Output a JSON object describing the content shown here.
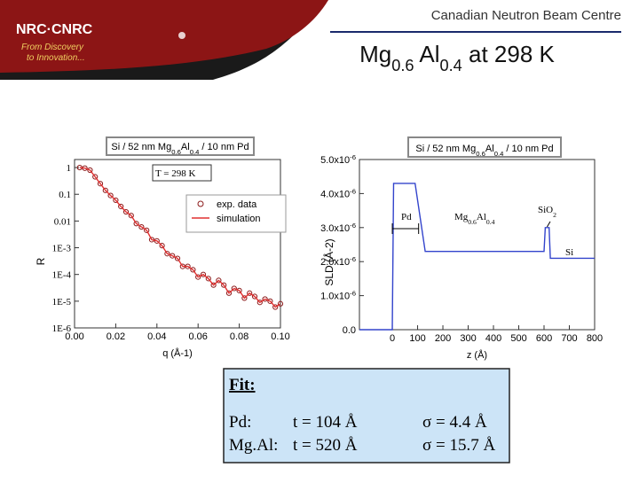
{
  "header": {
    "org": "Canadian Neutron Beam Centre",
    "logo": "NRC·CNRC",
    "tagline": [
      "From Discovery",
      "to Innovation..."
    ]
  },
  "title": [
    "Mg",
    "0.6",
    " Al",
    "0.4",
    " at 298 K"
  ],
  "chart_data": [
    {
      "type": "line",
      "title": [
        "Si / 52 nm Mg",
        "0.6",
        "Al",
        "0.4",
        " / 10 nm Pd"
      ],
      "annotations": [
        [
          "T = 298 K"
        ]
      ],
      "x_label": "q (Å-1)",
      "y_label": "R",
      "ylog": true,
      "xlim": [
        0,
        0.1
      ],
      "ylim": [
        1e-06,
        2
      ],
      "xticks": [
        {
          "value": 0,
          "label": "0.00"
        },
        {
          "value": 0.02,
          "label": "0.02"
        },
        {
          "value": 0.04,
          "label": "0.04"
        },
        {
          "value": 0.06,
          "label": "0.06"
        },
        {
          "value": 0.08,
          "label": "0.08"
        },
        {
          "value": 0.1,
          "label": "0.10"
        }
      ],
      "yticks": [
        1,
        0.1,
        0.01,
        {
          "value": 0.001,
          "label": "1E-3"
        },
        {
          "value": 0.0001,
          "label": "1E-4"
        },
        {
          "value": 1e-05,
          "label": "1E-5"
        },
        {
          "value": 1e-06,
          "label": "1E-6"
        }
      ],
      "x": [
        0.0025,
        0.005,
        0.0075,
        0.01,
        0.0125,
        0.015,
        0.0175,
        0.02,
        0.0225,
        0.025,
        0.0275,
        0.03,
        0.0325,
        0.035,
        0.0375,
        0.04,
        0.0425,
        0.045,
        0.0475,
        0.05,
        0.0525,
        0.055,
        0.0575,
        0.06,
        0.0625,
        0.065,
        0.0675,
        0.07,
        0.0725,
        0.075,
        0.0775,
        0.08,
        0.0825,
        0.085,
        0.0875,
        0.09,
        0.0925,
        0.095,
        0.0975,
        0.1
      ],
      "series": [
        {
          "name": "exp. data",
          "color": "#8b1a1a",
          "marker": true,
          "values": [
            1.0,
            0.95,
            0.8,
            0.45,
            0.25,
            0.14,
            0.09,
            0.06,
            0.035,
            0.022,
            0.016,
            0.008,
            0.006,
            0.0045,
            0.002,
            0.0018,
            0.0012,
            0.0006,
            0.0005,
            0.0004,
            0.0002,
            0.0002,
            0.00015,
            8e-05,
            0.0001,
            7e-05,
            4e-05,
            6e-05,
            4e-05,
            2e-05,
            3e-05,
            2.5e-05,
            1.3e-05,
            2e-05,
            1.5e-05,
            9e-06,
            1.2e-05,
            1e-05,
            6e-06,
            8e-06
          ]
        },
        {
          "name": "simulation",
          "color": "#e03030",
          "marker": false,
          "values": [
            1.0,
            0.95,
            0.8,
            0.45,
            0.25,
            0.14,
            0.09,
            0.06,
            0.035,
            0.022,
            0.016,
            0.008,
            0.006,
            0.0045,
            0.002,
            0.0018,
            0.0012,
            0.0006,
            0.0005,
            0.0004,
            0.0002,
            0.0002,
            0.00015,
            8e-05,
            0.0001,
            7e-05,
            4e-05,
            6e-05,
            4e-05,
            2e-05,
            3e-05,
            2.5e-05,
            1.3e-05,
            2e-05,
            1.5e-05,
            9e-06,
            1.2e-05,
            1e-05,
            6e-06,
            8e-06
          ]
        }
      ]
    },
    {
      "type": "line",
      "title": [
        "Si / 52 nm Mg",
        "0.6",
        "Al",
        "0.4",
        " / 10 nm Pd"
      ],
      "annotations": [
        [
          "Pd"
        ],
        [
          "Mg",
          "0.6",
          "Al",
          "0.4"
        ],
        [
          "SiO",
          "2"
        ],
        [
          "Si"
        ]
      ],
      "x_label": "z (Å)",
      "y_label": "SLD (Å-2)",
      "xlim": [
        -130,
        800
      ],
      "ylim": [
        0,
        5e-06
      ],
      "xticks": [
        0,
        100,
        200,
        300,
        400,
        500,
        600,
        700,
        800
      ],
      "yticks": [
        {
          "value": 0,
          "label": "0.0"
        },
        {
          "value": 1e-06,
          "label": "1.0x10-6"
        },
        {
          "value": 2e-06,
          "label": "2.0x10-6"
        },
        {
          "value": 3e-06,
          "label": "3.0x10-6"
        },
        {
          "value": 4e-06,
          "label": "4.0x10-6"
        },
        {
          "value": 5e-06,
          "label": "5.0x10-6"
        }
      ],
      "x": [
        -130,
        0,
        5,
        90,
        130,
        600,
        605,
        620,
        625,
        800
      ],
      "series": [
        {
          "name": "SLD",
          "color": "#3344cc",
          "marker": false,
          "values": [
            0,
            0,
            4.3e-06,
            4.3e-06,
            2.3e-06,
            2.3e-06,
            3e-06,
            3e-06,
            2.1e-06,
            2.1e-06
          ]
        }
      ]
    }
  ],
  "fit": {
    "title": "Fit:",
    "rows": [
      [
        "Pd:",
        "t = 104 Å",
        "σ = 4.4 Å"
      ],
      [
        "Mg.Al:",
        "t = 520 Å",
        "σ = 15.7 Å"
      ]
    ]
  }
}
